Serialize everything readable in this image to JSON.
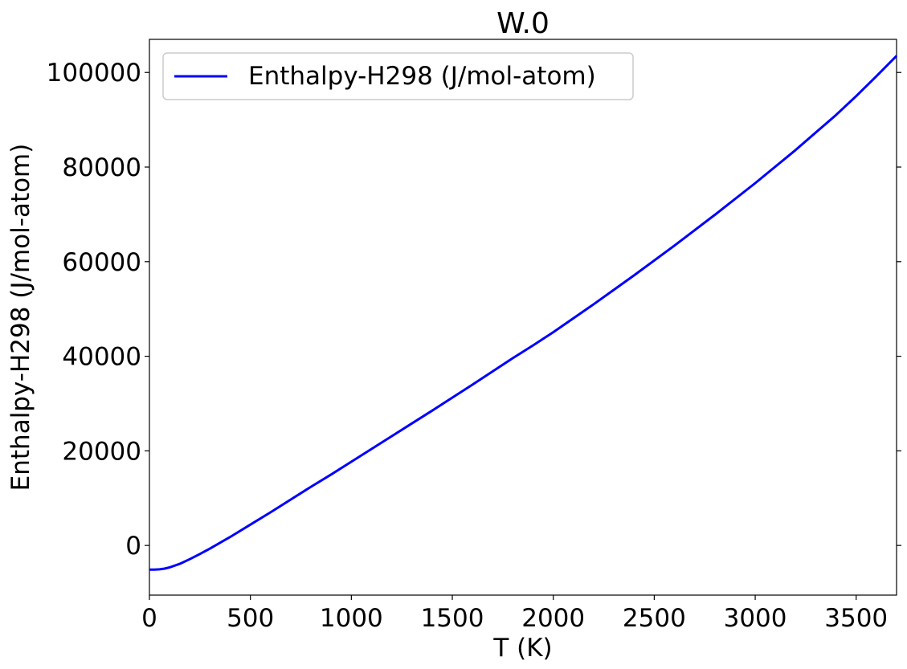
{
  "chart_data": {
    "type": "line",
    "title": "W.0",
    "xlabel": "T (K)",
    "ylabel": "Enthalpy-H298 (J/mol-atom)",
    "xlim": [
      0,
      3700
    ],
    "ylim": [
      -10500,
      107000
    ],
    "xticks": [
      0,
      500,
      1000,
      1500,
      2000,
      2500,
      3000,
      3500
    ],
    "yticks": [
      0,
      20000,
      40000,
      60000,
      80000,
      100000
    ],
    "grid": false,
    "legend_position": "top-left",
    "series": [
      {
        "name": "Enthalpy-H298 (J/mol-atom)",
        "color": "#0000ff",
        "x": [
          0,
          25,
          50,
          75,
          100,
          150,
          200,
          250,
          298,
          400,
          500,
          600,
          700,
          800,
          900,
          1000,
          1200,
          1400,
          1600,
          1800,
          1900,
          2000,
          2200,
          2400,
          2600,
          2800,
          3000,
          3200,
          3400,
          3500,
          3600,
          3700
        ],
        "y": [
          -5100,
          -5100,
          -5050,
          -4900,
          -4650,
          -3900,
          -2900,
          -1800,
          -700,
          1800,
          4400,
          7000,
          9700,
          12400,
          15000,
          17700,
          23100,
          28500,
          34000,
          39600,
          42300,
          45100,
          51000,
          57100,
          63400,
          69900,
          76600,
          83600,
          91000,
          95000,
          99200,
          103500
        ]
      }
    ]
  }
}
